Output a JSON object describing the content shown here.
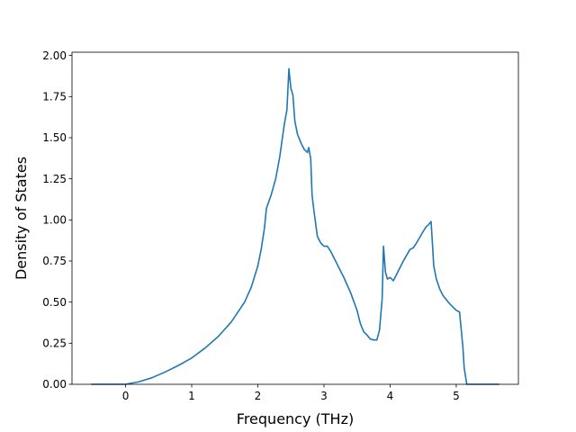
{
  "chart_data": {
    "type": "line",
    "title": "",
    "xlabel": "Frequency (THz)",
    "ylabel": "Density of States",
    "xlim": [
      -0.81,
      5.94
    ],
    "ylim": [
      0.0,
      2.02
    ],
    "xticks": [
      0,
      1,
      2,
      3,
      4,
      5
    ],
    "xtick_labels": [
      "0",
      "1",
      "2",
      "3",
      "4",
      "5"
    ],
    "yticks": [
      0.0,
      0.25,
      0.5,
      0.75,
      1.0,
      1.25,
      1.5,
      1.75,
      2.0
    ],
    "ytick_labels": [
      "0.00",
      "0.25",
      "0.50",
      "0.75",
      "1.00",
      "1.25",
      "1.50",
      "1.75",
      "2.00"
    ],
    "grid": false,
    "colors": {
      "line": "#1f77b4",
      "axes": "#000000",
      "background": "#ffffff"
    },
    "series": [
      {
        "x": [
          -0.52,
          0.0,
          0.2,
          0.4,
          0.6,
          0.8,
          1.0,
          1.2,
          1.4,
          1.6,
          1.8,
          1.9,
          2.0,
          2.05,
          2.1,
          2.13,
          2.2,
          2.27,
          2.33,
          2.4,
          2.44,
          2.47,
          2.5,
          2.53,
          2.56,
          2.6,
          2.65,
          2.7,
          2.75,
          2.77,
          2.8,
          2.82,
          2.85,
          2.9,
          2.95,
          3.0,
          3.05,
          3.1,
          3.2,
          3.3,
          3.4,
          3.5,
          3.55,
          3.6,
          3.65,
          3.7,
          3.75,
          3.8,
          3.84,
          3.88,
          3.9,
          3.93,
          3.96,
          4.0,
          4.05,
          4.1,
          4.2,
          4.3,
          4.35,
          4.4,
          4.5,
          4.55,
          4.58,
          4.62,
          4.66,
          4.7,
          4.75,
          4.8,
          4.9,
          5.0,
          5.05,
          5.1,
          5.12,
          5.16,
          5.3,
          5.5,
          5.65
        ],
        "y": [
          0.0,
          0.0,
          0.015,
          0.04,
          0.075,
          0.115,
          0.16,
          0.22,
          0.29,
          0.38,
          0.5,
          0.59,
          0.72,
          0.82,
          0.95,
          1.07,
          1.15,
          1.25,
          1.38,
          1.58,
          1.67,
          1.92,
          1.8,
          1.76,
          1.6,
          1.52,
          1.47,
          1.43,
          1.41,
          1.44,
          1.37,
          1.15,
          1.05,
          0.9,
          0.86,
          0.84,
          0.84,
          0.81,
          0.73,
          0.65,
          0.56,
          0.45,
          0.37,
          0.32,
          0.3,
          0.275,
          0.27,
          0.27,
          0.33,
          0.52,
          0.84,
          0.68,
          0.64,
          0.65,
          0.63,
          0.67,
          0.75,
          0.82,
          0.83,
          0.86,
          0.93,
          0.96,
          0.97,
          0.99,
          0.72,
          0.64,
          0.58,
          0.54,
          0.49,
          0.45,
          0.44,
          0.23,
          0.1,
          0.0,
          0.0,
          0.0,
          0.0
        ]
      }
    ]
  }
}
